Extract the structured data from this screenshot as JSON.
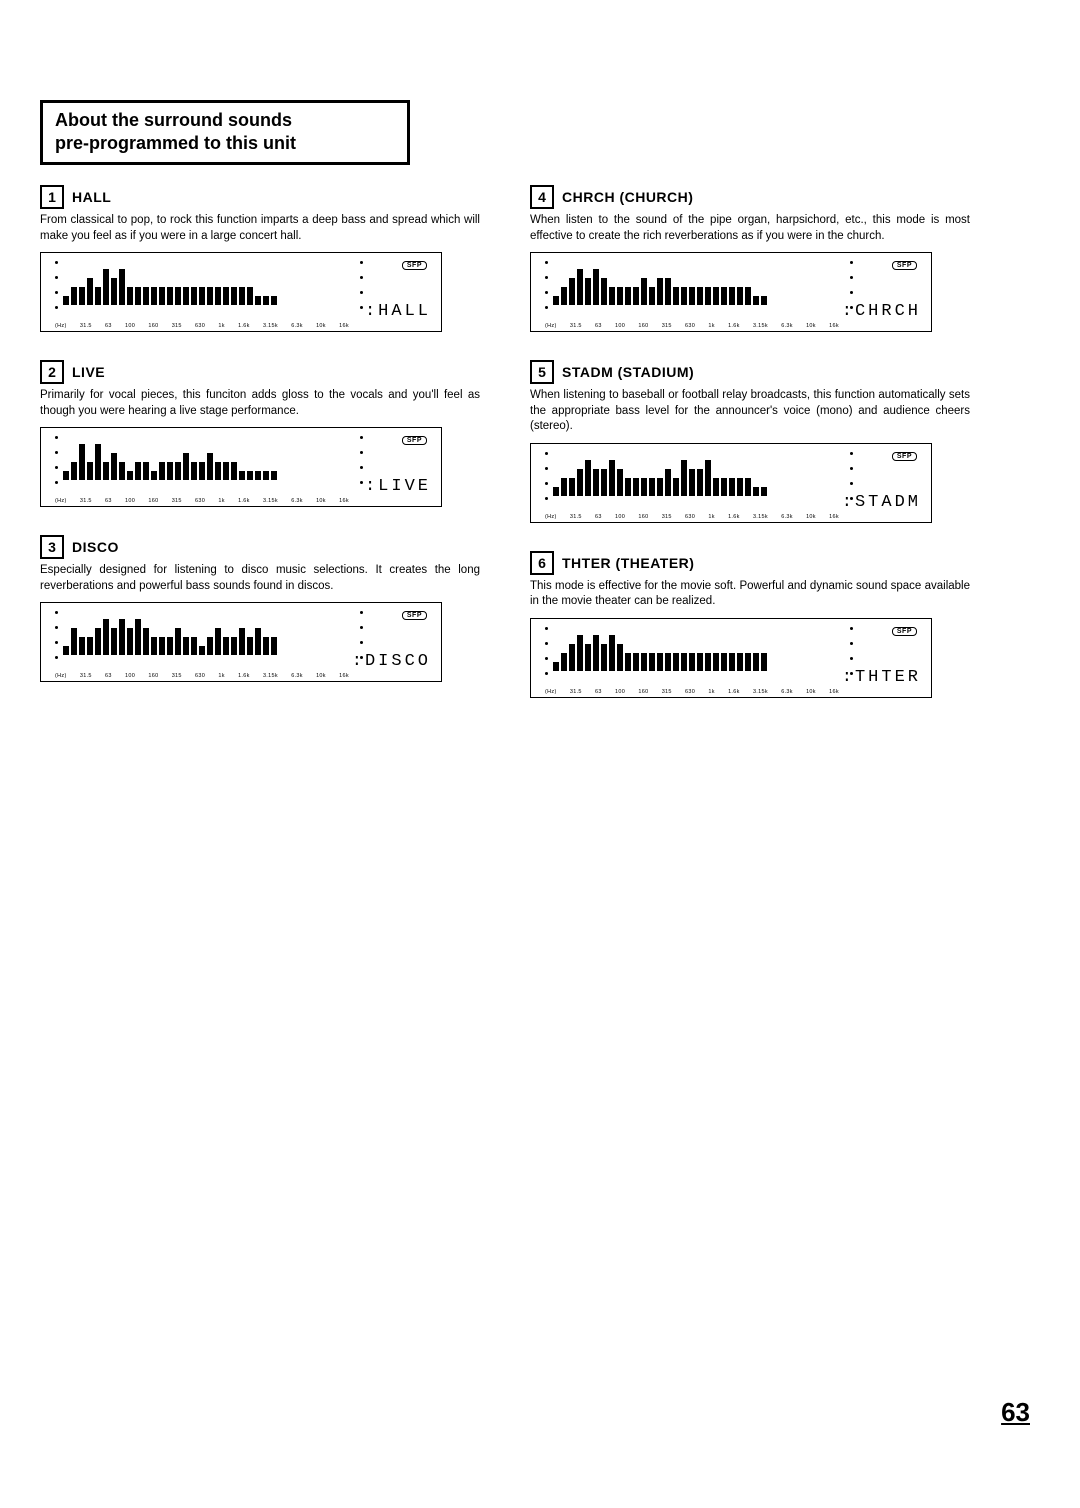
{
  "page_number": "63",
  "about_box": {
    "line1": "About the surround sounds",
    "line2": "pre-programmed to this unit"
  },
  "axis_labels": [
    "(Hz)",
    "31.5",
    "63",
    "100",
    "160",
    "315",
    "630",
    "1k",
    "1.6k",
    "3.15k",
    "6.3k",
    "10k",
    "16k"
  ],
  "sfp_label": "SFP",
  "modes": [
    {
      "num": "1",
      "title": "HALL",
      "desc": "From classical to pop, to rock this function imparts a deep bass and spread which will make you feel as if you were in a large concert hall.",
      "display_label": ":HALL",
      "eq": [
        3,
        6,
        6,
        9,
        6,
        12,
        9,
        12,
        6,
        6,
        6,
        6,
        6,
        6,
        6,
        6,
        6,
        6,
        6,
        6,
        6,
        6,
        6,
        6,
        3,
        3,
        3
      ]
    },
    {
      "num": "2",
      "title": "LIVE",
      "desc": "Primarily for vocal pieces, this funciton adds gloss to the vocals and you'll feel as though you were hearing a live stage performance.",
      "display_label": ":LIVE",
      "eq": [
        3,
        6,
        12,
        6,
        12,
        6,
        9,
        6,
        3,
        6,
        6,
        3,
        6,
        6,
        6,
        9,
        6,
        6,
        9,
        6,
        6,
        6,
        3,
        3,
        3,
        3,
        3
      ]
    },
    {
      "num": "3",
      "title": "DISCO",
      "desc": "Especially designed for listening to disco music selections. It creates the long reverberations and powerful bass sounds found in discos.",
      "display_label": ":DISCO",
      "eq": [
        3,
        9,
        6,
        6,
        9,
        12,
        9,
        12,
        9,
        12,
        9,
        6,
        6,
        6,
        9,
        6,
        6,
        3,
        6,
        9,
        6,
        6,
        9,
        6,
        9,
        6,
        6
      ]
    },
    {
      "num": "4",
      "title": "CHRCH (CHURCH)",
      "desc": "When listen to the sound of the pipe organ, harpsichord, etc., this mode is most effective to create the rich reverberations as if you were in the church.",
      "display_label": ":CHRCH",
      "eq": [
        3,
        6,
        9,
        12,
        9,
        12,
        9,
        6,
        6,
        6,
        6,
        9,
        6,
        9,
        9,
        6,
        6,
        6,
        6,
        6,
        6,
        6,
        6,
        6,
        6,
        3,
        3
      ]
    },
    {
      "num": "5",
      "title": "STADM (STADIUM)",
      "desc": "When listening to baseball or football relay broadcasts, this function automatically sets the appropriate bass level for the announcer's voice (mono) and audience cheers (stereo).",
      "display_label": ":STADM",
      "eq": [
        3,
        6,
        6,
        9,
        12,
        9,
        9,
        12,
        9,
        6,
        6,
        6,
        6,
        6,
        9,
        6,
        12,
        9,
        9,
        12,
        6,
        6,
        6,
        6,
        6,
        3,
        3
      ]
    },
    {
      "num": "6",
      "title": "THTER (THEATER)",
      "desc": "This mode is effective for the movie soft.\nPowerful and dynamic sound space available in the movie theater can be realized.",
      "display_label": ":THTER",
      "eq": [
        3,
        6,
        9,
        12,
        9,
        12,
        9,
        12,
        9,
        6,
        6,
        6,
        6,
        6,
        6,
        6,
        6,
        6,
        6,
        6,
        6,
        6,
        6,
        6,
        6,
        6,
        6
      ]
    }
  ]
}
